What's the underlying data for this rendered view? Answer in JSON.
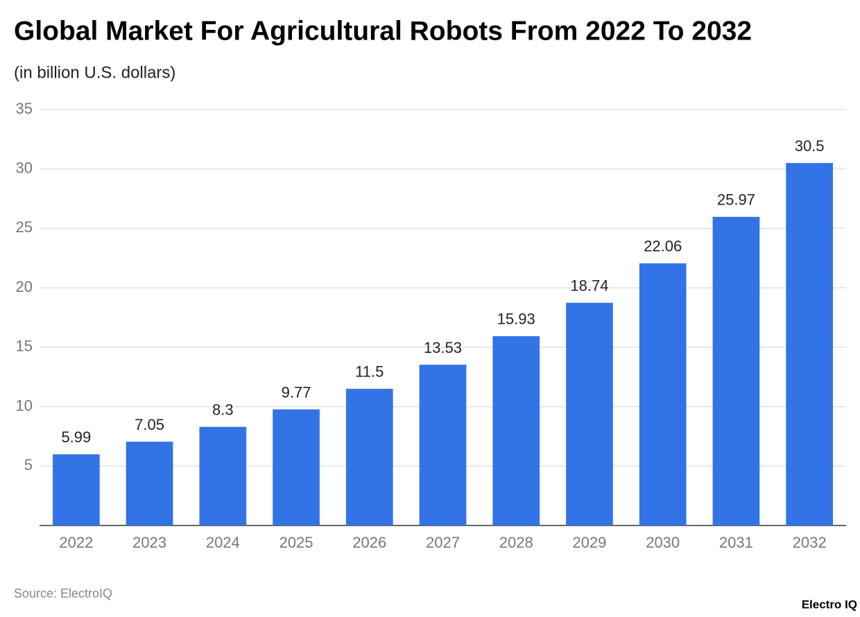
{
  "chart_data": {
    "type": "bar",
    "title": "Global Market For Agricultural Robots From 2022 To 2032",
    "subtitle": "(in billion U.S. dollars)",
    "categories": [
      "2022",
      "2023",
      "2024",
      "2025",
      "2026",
      "2027",
      "2028",
      "2029",
      "2030",
      "2031",
      "2032"
    ],
    "values": [
      5.99,
      7.05,
      8.3,
      9.77,
      11.5,
      13.53,
      15.93,
      18.74,
      22.06,
      25.97,
      30.5
    ],
    "color": "#3273e6",
    "ylim": [
      0,
      35
    ],
    "yticks": [
      5,
      10,
      15,
      20,
      25,
      30,
      35
    ],
    "grid": true,
    "source": "Source: ElectroIQ",
    "brand": "Electro IQ"
  }
}
